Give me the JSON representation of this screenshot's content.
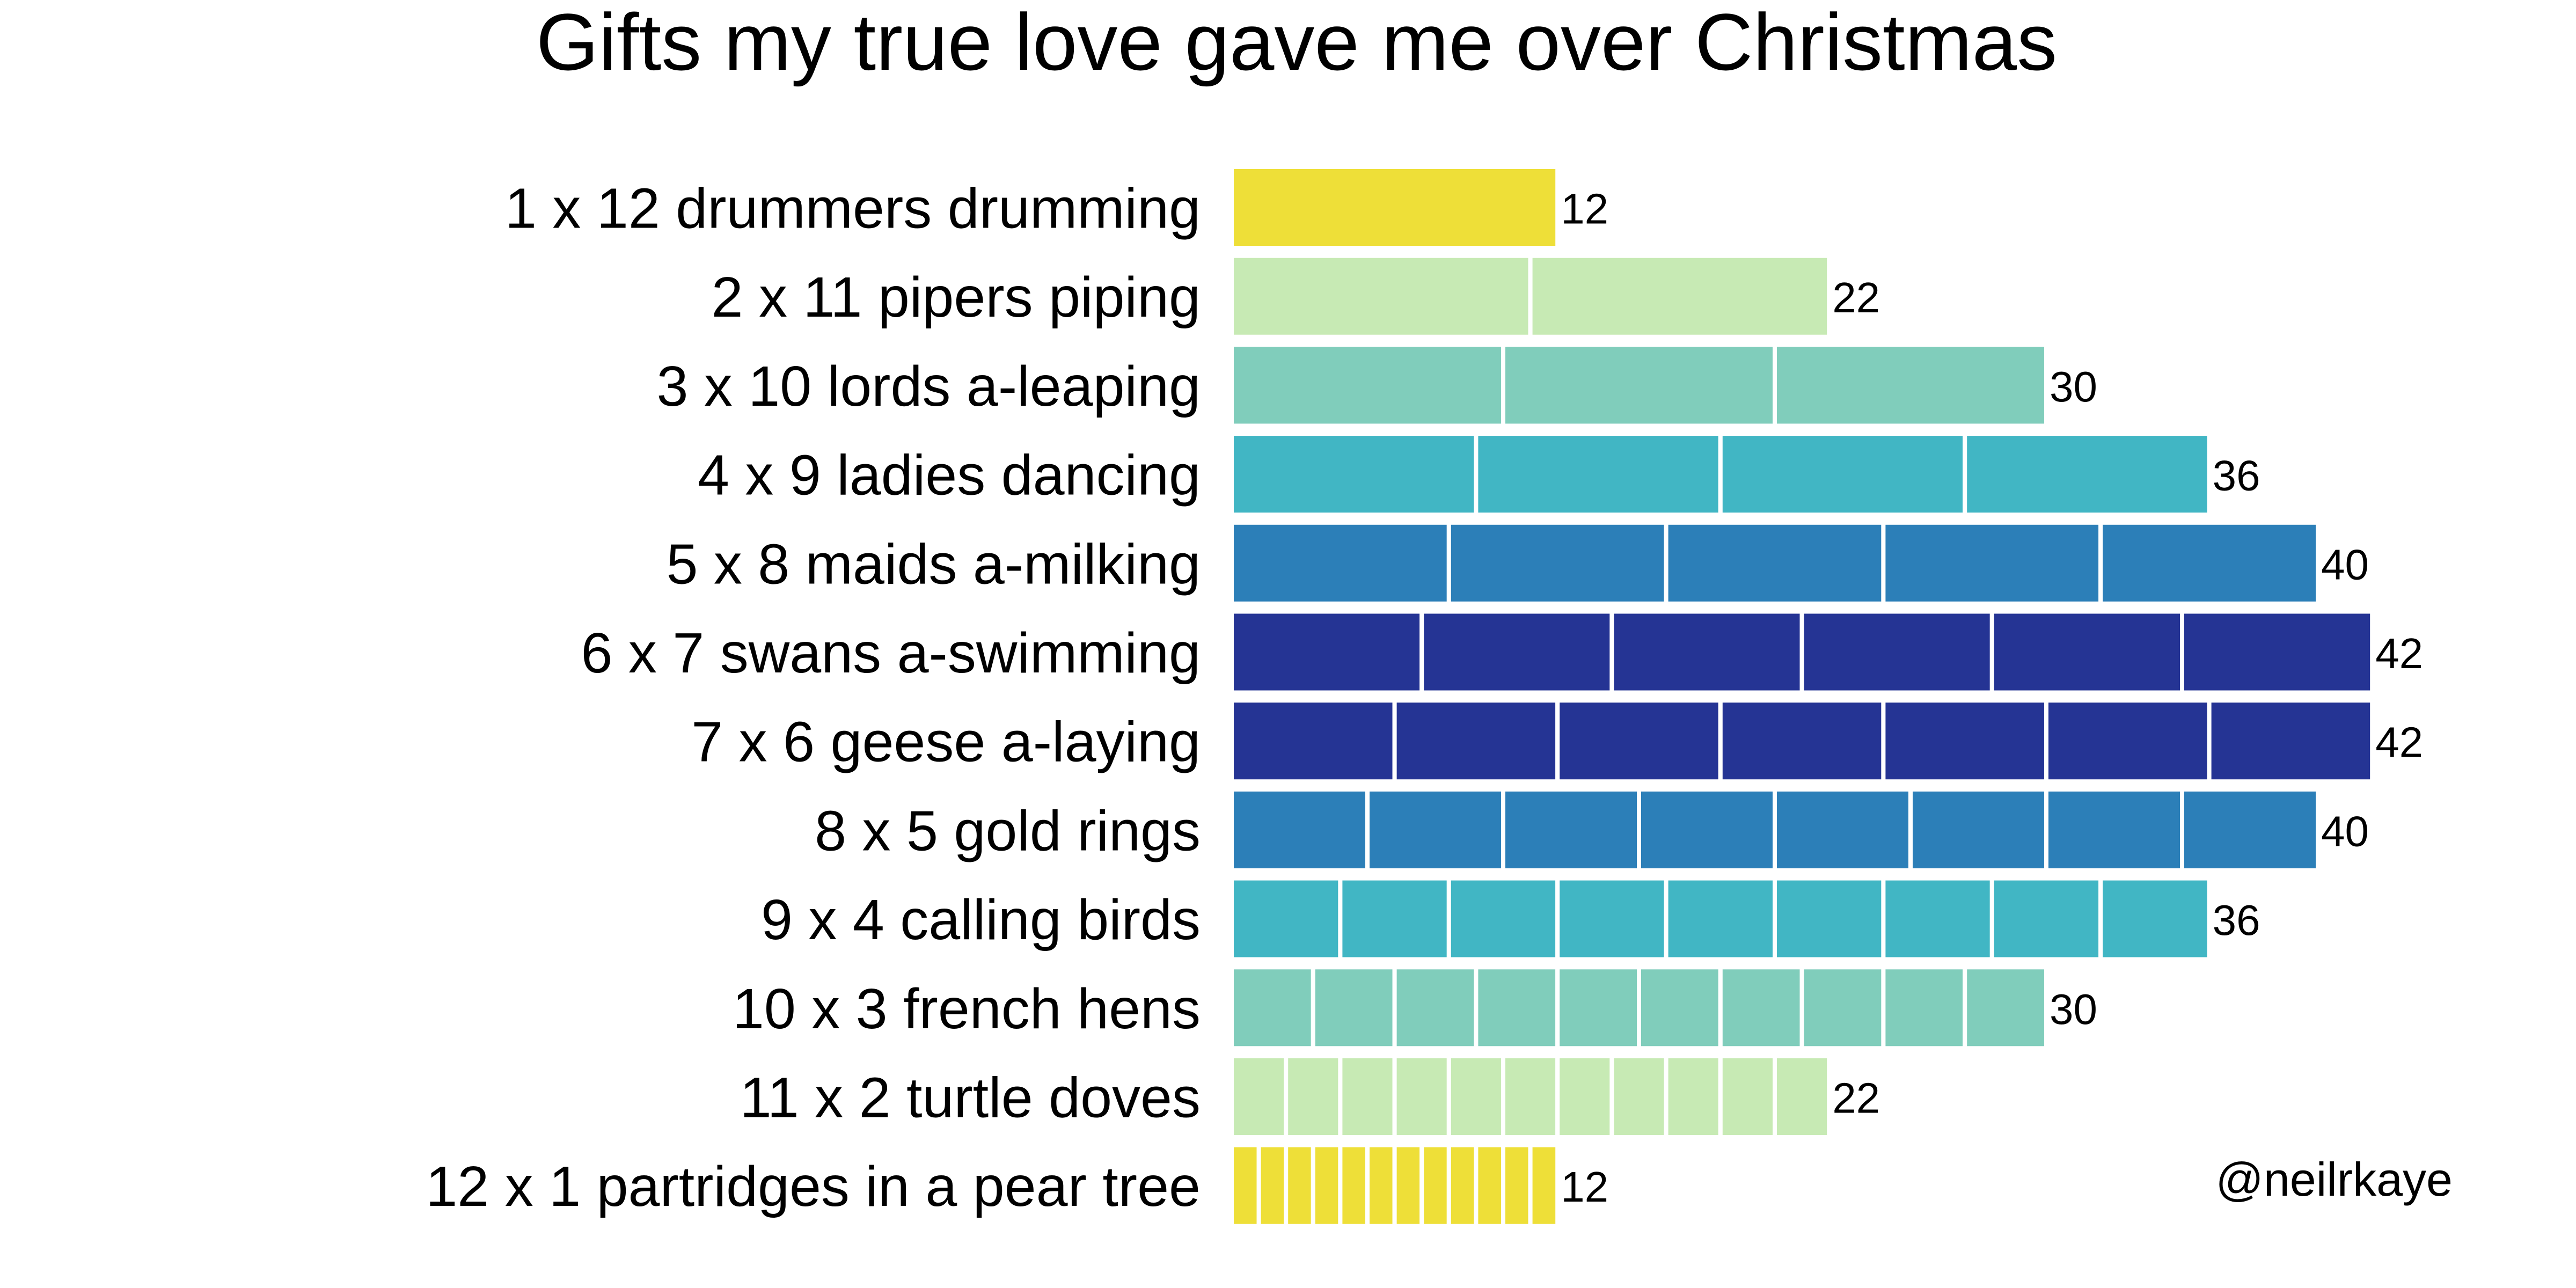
{
  "chart_data": {
    "type": "bar",
    "orientation": "horizontal",
    "stacked_segments": true,
    "title": "Gifts my true love gave me over Christmas",
    "xlabel": "",
    "ylabel": "",
    "grid": false,
    "xlim": [
      0,
      42
    ],
    "categories": [
      "1 x 12 drummers drumming",
      "2 x 11 pipers piping",
      "3 x 10 lords a-leaping",
      "4 x 9 ladies dancing",
      "5 x 8 maids a-milking",
      "6 x 7 swans a-swimming",
      "7 x 6 geese a-laying",
      "8 x 5 gold rings ",
      "9 x 4 calling birds",
      "10 x 3 french hens",
      "11 x 2 turtle doves",
      "12 x 1 partridges in a pear tree"
    ],
    "segment_counts": [
      1,
      2,
      3,
      4,
      5,
      6,
      7,
      8,
      9,
      10,
      11,
      12
    ],
    "segment_sizes": [
      12,
      11,
      10,
      9,
      8,
      7,
      6,
      5,
      4,
      3,
      2,
      1
    ],
    "values": [
      12,
      22,
      30,
      36,
      40,
      42,
      42,
      40,
      36,
      30,
      22,
      12
    ],
    "value_labels": [
      "12",
      "22",
      "30",
      "36",
      "40",
      "42",
      "42",
      "40",
      "36",
      "30",
      "22",
      "12"
    ],
    "colors": [
      "#EEDF38",
      "#C7EAB4",
      "#80CDBB",
      "#41B6C4",
      "#2C7FB8",
      "#253494",
      "#253494",
      "#2C7FB8",
      "#41B6C4",
      "#80CDBB",
      "#C7EAB4",
      "#EEDF38"
    ],
    "annotation": "@neilrkaye"
  }
}
